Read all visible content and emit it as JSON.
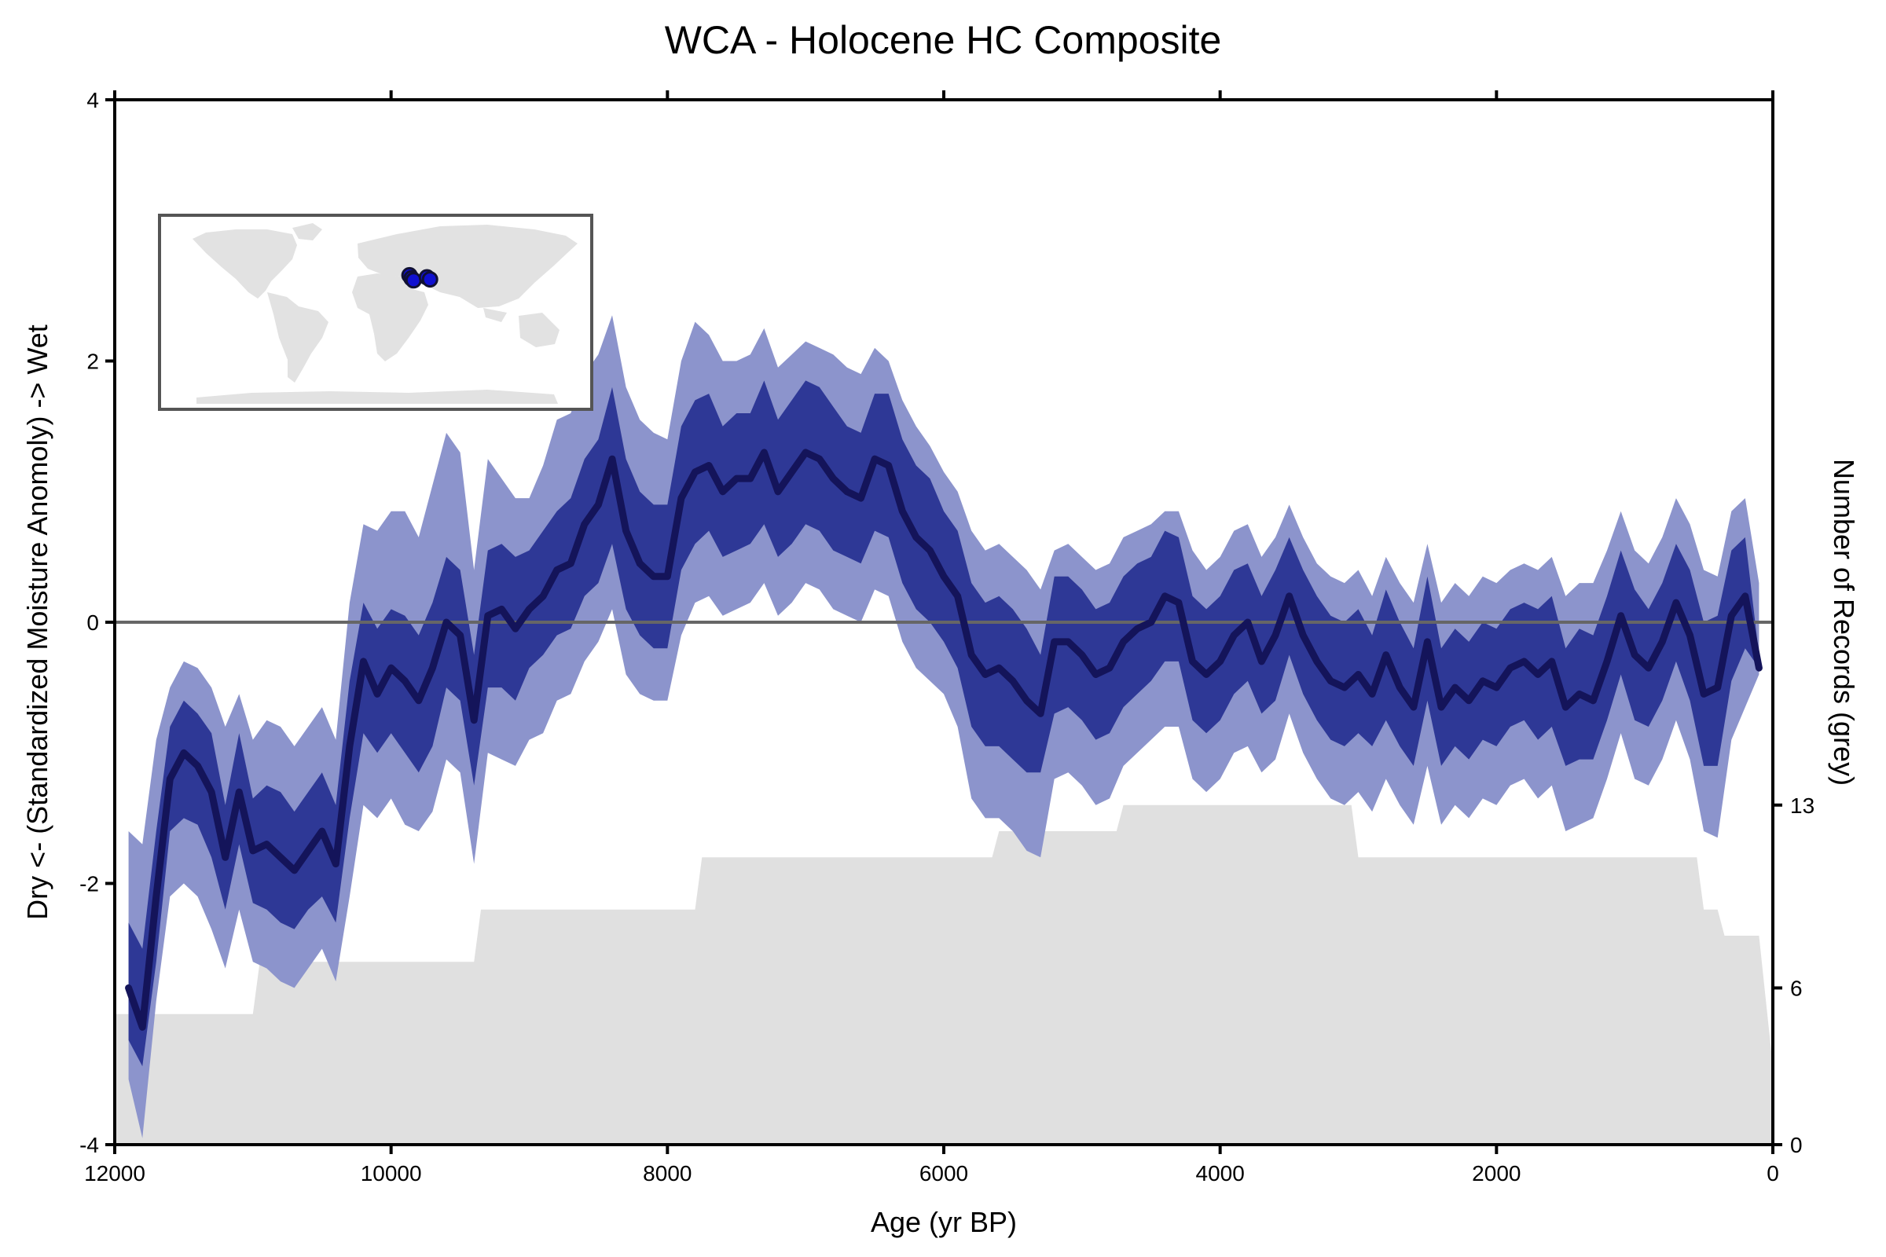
{
  "chart_data": {
    "type": "line",
    "title": "WCA - Holocene HC Composite",
    "xlabel": "Age (yr BP)",
    "ylabel": "Dry <- (Standardized Moisture Anomoly) -> Wet",
    "ylabel_right": "Number of Records (grey)",
    "xlim": [
      12000,
      0
    ],
    "ylim": [
      -4,
      4
    ],
    "y2lim": [
      0,
      40
    ],
    "x_ticks": [
      "12000",
      "10000",
      "8000",
      "6000",
      "4000",
      "2000",
      "0"
    ],
    "y_ticks": [
      "-4",
      "-2",
      "0",
      "2",
      "4"
    ],
    "y2_ticks": [
      "0",
      "6",
      "13"
    ],
    "hline_y": 0,
    "colors": {
      "median": "#14145a",
      "inner_band": "#2e3896",
      "outer_band": "#8c94cc",
      "records": "#e0e0e0",
      "zero_line": "#666666",
      "map_land": "#e2e2e2",
      "map_sites": "#1010d0"
    },
    "series": [
      {
        "name": "Median",
        "x": [
          11900,
          11800,
          11700,
          11600,
          11500,
          11400,
          11300,
          11200,
          11100,
          11000,
          10900,
          10800,
          10700,
          10600,
          10500,
          10400,
          10300,
          10200,
          10100,
          10000,
          9900,
          9800,
          9700,
          9600,
          9500,
          9400,
          9300,
          9200,
          9100,
          9000,
          8900,
          8800,
          8700,
          8600,
          8500,
          8400,
          8300,
          8200,
          8100,
          8000,
          7900,
          7800,
          7700,
          7600,
          7500,
          7400,
          7300,
          7200,
          7100,
          7000,
          6900,
          6800,
          6700,
          6600,
          6500,
          6400,
          6300,
          6200,
          6100,
          6000,
          5900,
          5800,
          5700,
          5600,
          5500,
          5400,
          5300,
          5200,
          5100,
          5000,
          4900,
          4800,
          4700,
          4600,
          4500,
          4400,
          4300,
          4200,
          4100,
          4000,
          3900,
          3800,
          3700,
          3600,
          3500,
          3400,
          3300,
          3200,
          3100,
          3000,
          2900,
          2800,
          2700,
          2600,
          2500,
          2400,
          2300,
          2200,
          2100,
          2000,
          1900,
          1800,
          1700,
          1600,
          1500,
          1400,
          1300,
          1200,
          1100,
          1000,
          900,
          800,
          700,
          600,
          500,
          400,
          300,
          200,
          100
        ],
        "values": [
          -2.8,
          -3.1,
          -2.1,
          -1.2,
          -1.0,
          -1.1,
          -1.3,
          -1.8,
          -1.3,
          -1.75,
          -1.7,
          -1.8,
          -1.9,
          -1.75,
          -1.6,
          -1.85,
          -0.95,
          -0.3,
          -0.55,
          -0.35,
          -0.45,
          -0.6,
          -0.35,
          0.0,
          -0.1,
          -0.75,
          0.05,
          0.1,
          -0.05,
          0.1,
          0.2,
          0.4,
          0.45,
          0.75,
          0.9,
          1.25,
          0.7,
          0.45,
          0.35,
          0.35,
          0.95,
          1.15,
          1.2,
          1.0,
          1.1,
          1.1,
          1.3,
          1.0,
          1.15,
          1.3,
          1.25,
          1.1,
          1.0,
          0.95,
          1.25,
          1.2,
          0.85,
          0.65,
          0.55,
          0.35,
          0.2,
          -0.25,
          -0.4,
          -0.35,
          -0.45,
          -0.6,
          -0.7,
          -0.15,
          -0.15,
          -0.25,
          -0.4,
          -0.35,
          -0.15,
          -0.05,
          0.0,
          0.2,
          0.15,
          -0.3,
          -0.4,
          -0.3,
          -0.1,
          0.0,
          -0.3,
          -0.1,
          0.2,
          -0.1,
          -0.3,
          -0.45,
          -0.5,
          -0.4,
          -0.55,
          -0.25,
          -0.5,
          -0.65,
          -0.15,
          -0.65,
          -0.5,
          -0.6,
          -0.45,
          -0.5,
          -0.35,
          -0.3,
          -0.4,
          -0.3,
          -0.65,
          -0.55,
          -0.6,
          -0.3,
          0.05,
          -0.25,
          -0.35,
          -0.15,
          0.15,
          -0.1,
          -0.55,
          -0.5,
          0.05,
          0.2,
          -0.35
        ]
      },
      {
        "name": "Inner band",
        "x": [
          11900,
          11800,
          11700,
          11600,
          11500,
          11400,
          11300,
          11200,
          11100,
          11000,
          10900,
          10800,
          10700,
          10600,
          10500,
          10400,
          10300,
          10200,
          10100,
          10000,
          9900,
          9800,
          9700,
          9600,
          9500,
          9400,
          9300,
          9200,
          9100,
          9000,
          8900,
          8800,
          8700,
          8600,
          8500,
          8400,
          8300,
          8200,
          8100,
          8000,
          7900,
          7800,
          7700,
          7600,
          7500,
          7400,
          7300,
          7200,
          7100,
          7000,
          6900,
          6800,
          6700,
          6600,
          6500,
          6400,
          6300,
          6200,
          6100,
          6000,
          5900,
          5800,
          5700,
          5600,
          5500,
          5400,
          5300,
          5200,
          5100,
          5000,
          4900,
          4800,
          4700,
          4600,
          4500,
          4400,
          4300,
          4200,
          4100,
          4000,
          3900,
          3800,
          3700,
          3600,
          3500,
          3400,
          3300,
          3200,
          3100,
          3000,
          2900,
          2800,
          2700,
          2600,
          2500,
          2400,
          2300,
          2200,
          2100,
          2000,
          1900,
          1800,
          1700,
          1600,
          1500,
          1400,
          1300,
          1200,
          1100,
          1000,
          900,
          800,
          700,
          600,
          500,
          400,
          300,
          200,
          100
        ],
        "lower": [
          -3.2,
          -3.4,
          -2.6,
          -1.6,
          -1.5,
          -1.55,
          -1.8,
          -2.2,
          -1.7,
          -2.15,
          -2.2,
          -2.3,
          -2.35,
          -2.2,
          -2.1,
          -2.3,
          -1.5,
          -0.85,
          -1.0,
          -0.85,
          -1.0,
          -1.15,
          -0.95,
          -0.5,
          -0.6,
          -1.25,
          -0.5,
          -0.5,
          -0.6,
          -0.35,
          -0.25,
          -0.1,
          -0.05,
          0.2,
          0.3,
          0.6,
          0.1,
          -0.1,
          -0.2,
          -0.2,
          0.4,
          0.6,
          0.7,
          0.5,
          0.55,
          0.6,
          0.75,
          0.5,
          0.6,
          0.75,
          0.7,
          0.55,
          0.5,
          0.45,
          0.7,
          0.65,
          0.3,
          0.1,
          0.0,
          -0.15,
          -0.35,
          -0.8,
          -0.95,
          -0.95,
          -1.05,
          -1.15,
          -1.15,
          -0.7,
          -0.65,
          -0.75,
          -0.9,
          -0.85,
          -0.65,
          -0.55,
          -0.45,
          -0.3,
          -0.3,
          -0.75,
          -0.85,
          -0.75,
          -0.55,
          -0.45,
          -0.7,
          -0.6,
          -0.25,
          -0.55,
          -0.75,
          -0.9,
          -0.95,
          -0.85,
          -0.95,
          -0.75,
          -0.95,
          -1.1,
          -0.6,
          -1.1,
          -0.95,
          -1.05,
          -0.9,
          -0.95,
          -0.8,
          -0.75,
          -0.9,
          -0.8,
          -1.1,
          -1.05,
          -1.05,
          -0.75,
          -0.4,
          -0.75,
          -0.8,
          -0.6,
          -0.3,
          -0.6,
          -1.1,
          -1.1,
          -0.45,
          -0.2,
          -0.35
        ],
        "upper": [
          -2.3,
          -2.5,
          -1.6,
          -0.8,
          -0.6,
          -0.7,
          -0.85,
          -1.4,
          -0.85,
          -1.35,
          -1.25,
          -1.3,
          -1.45,
          -1.3,
          -1.15,
          -1.4,
          -0.45,
          0.15,
          -0.05,
          0.1,
          0.05,
          -0.1,
          0.15,
          0.5,
          0.4,
          -0.25,
          0.55,
          0.6,
          0.5,
          0.55,
          0.7,
          0.85,
          0.95,
          1.25,
          1.4,
          1.8,
          1.25,
          1.0,
          0.9,
          0.9,
          1.5,
          1.7,
          1.75,
          1.5,
          1.6,
          1.6,
          1.85,
          1.55,
          1.7,
          1.85,
          1.8,
          1.65,
          1.5,
          1.45,
          1.75,
          1.75,
          1.4,
          1.2,
          1.1,
          0.85,
          0.7,
          0.3,
          0.15,
          0.2,
          0.1,
          -0.05,
          -0.25,
          0.35,
          0.35,
          0.25,
          0.1,
          0.15,
          0.35,
          0.45,
          0.5,
          0.7,
          0.65,
          0.2,
          0.1,
          0.2,
          0.4,
          0.45,
          0.2,
          0.4,
          0.65,
          0.4,
          0.2,
          0.05,
          0.0,
          0.1,
          -0.1,
          0.25,
          0.0,
          -0.2,
          0.35,
          -0.2,
          -0.05,
          -0.15,
          0.0,
          -0.05,
          0.1,
          0.15,
          0.1,
          0.2,
          -0.2,
          -0.05,
          -0.1,
          0.2,
          0.55,
          0.25,
          0.1,
          0.3,
          0.6,
          0.4,
          0.0,
          0.05,
          0.55,
          0.65,
          -0.25
        ]
      },
      {
        "name": "Outer band",
        "x": [
          11900,
          11800,
          11700,
          11600,
          11500,
          11400,
          11300,
          11200,
          11100,
          11000,
          10900,
          10800,
          10700,
          10600,
          10500,
          10400,
          10300,
          10200,
          10100,
          10000,
          9900,
          9800,
          9700,
          9600,
          9500,
          9400,
          9300,
          9200,
          9100,
          9000,
          8900,
          8800,
          8700,
          8600,
          8500,
          8400,
          8300,
          8200,
          8100,
          8000,
          7900,
          7800,
          7700,
          7600,
          7500,
          7400,
          7300,
          7200,
          7100,
          7000,
          6900,
          6800,
          6700,
          6600,
          6500,
          6400,
          6300,
          6200,
          6100,
          6000,
          5900,
          5800,
          5700,
          5600,
          5500,
          5400,
          5300,
          5200,
          5100,
          5000,
          4900,
          4800,
          4700,
          4600,
          4500,
          4400,
          4300,
          4200,
          4100,
          4000,
          3900,
          3800,
          3700,
          3600,
          3500,
          3400,
          3300,
          3200,
          3100,
          3000,
          2900,
          2800,
          2700,
          2600,
          2500,
          2400,
          2300,
          2200,
          2100,
          2000,
          1900,
          1800,
          1700,
          1600,
          1500,
          1400,
          1300,
          1200,
          1100,
          1000,
          900,
          800,
          700,
          600,
          500,
          400,
          300,
          200,
          100
        ],
        "lower": [
          -3.5,
          -3.95,
          -2.9,
          -2.1,
          -2.0,
          -2.1,
          -2.35,
          -2.65,
          -2.2,
          -2.6,
          -2.65,
          -2.75,
          -2.8,
          -2.65,
          -2.5,
          -2.75,
          -2.1,
          -1.4,
          -1.5,
          -1.35,
          -1.55,
          -1.6,
          -1.45,
          -1.05,
          -1.15,
          -1.85,
          -1.0,
          -1.05,
          -1.1,
          -0.9,
          -0.85,
          -0.6,
          -0.55,
          -0.3,
          -0.15,
          0.1,
          -0.4,
          -0.55,
          -0.6,
          -0.6,
          -0.1,
          0.15,
          0.2,
          0.05,
          0.1,
          0.15,
          0.3,
          0.05,
          0.15,
          0.3,
          0.25,
          0.1,
          0.05,
          0.0,
          0.25,
          0.2,
          -0.15,
          -0.35,
          -0.45,
          -0.55,
          -0.8,
          -1.35,
          -1.5,
          -1.5,
          -1.6,
          -1.75,
          -1.8,
          -1.2,
          -1.15,
          -1.25,
          -1.4,
          -1.35,
          -1.1,
          -1.0,
          -0.9,
          -0.8,
          -0.8,
          -1.2,
          -1.3,
          -1.2,
          -1.0,
          -0.95,
          -1.15,
          -1.05,
          -0.7,
          -1.0,
          -1.2,
          -1.35,
          -1.4,
          -1.3,
          -1.45,
          -1.2,
          -1.4,
          -1.55,
          -1.1,
          -1.55,
          -1.4,
          -1.5,
          -1.35,
          -1.4,
          -1.25,
          -1.2,
          -1.35,
          -1.25,
          -1.6,
          -1.55,
          -1.5,
          -1.2,
          -0.85,
          -1.2,
          -1.25,
          -1.05,
          -0.75,
          -1.05,
          -1.6,
          -1.65,
          -0.9,
          -0.65,
          -0.4
        ],
        "upper": [
          -1.6,
          -1.7,
          -0.9,
          -0.5,
          -0.3,
          -0.35,
          -0.5,
          -0.8,
          -0.55,
          -0.9,
          -0.75,
          -0.8,
          -0.95,
          -0.8,
          -0.65,
          -0.9,
          0.15,
          0.75,
          0.7,
          0.85,
          0.85,
          0.65,
          1.05,
          1.45,
          1.3,
          0.4,
          1.25,
          1.1,
          0.95,
          0.95,
          1.2,
          1.55,
          1.6,
          1.9,
          2.05,
          2.35,
          1.8,
          1.55,
          1.45,
          1.4,
          2.0,
          2.3,
          2.2,
          2.0,
          2.0,
          2.05,
          2.25,
          1.95,
          2.05,
          2.15,
          2.1,
          2.05,
          1.95,
          1.9,
          2.1,
          2.0,
          1.7,
          1.5,
          1.35,
          1.15,
          1.0,
          0.7,
          0.55,
          0.6,
          0.5,
          0.4,
          0.25,
          0.55,
          0.6,
          0.5,
          0.4,
          0.45,
          0.65,
          0.7,
          0.75,
          0.85,
          0.85,
          0.55,
          0.4,
          0.5,
          0.7,
          0.75,
          0.5,
          0.65,
          0.9,
          0.65,
          0.45,
          0.35,
          0.3,
          0.4,
          0.2,
          0.5,
          0.3,
          0.15,
          0.6,
          0.15,
          0.3,
          0.2,
          0.35,
          0.3,
          0.4,
          0.45,
          0.4,
          0.5,
          0.2,
          0.3,
          0.3,
          0.55,
          0.85,
          0.55,
          0.45,
          0.65,
          0.95,
          0.75,
          0.4,
          0.35,
          0.85,
          0.95,
          0.3
        ]
      },
      {
        "name": "Number of Records",
        "axis": "right",
        "x": [
          12000,
          11000,
          10950,
          9400,
          9350,
          7800,
          7750,
          5650,
          5600,
          4750,
          4700,
          3050,
          3000,
          550,
          500,
          400,
          350,
          200,
          100,
          0
        ],
        "values": [
          5,
          5,
          7,
          7,
          9,
          9,
          11,
          11,
          12,
          12,
          13,
          13,
          11,
          11,
          9,
          9,
          8,
          8,
          8,
          3
        ]
      }
    ],
    "inset_map": {
      "sites": [
        {
          "lon": 33,
          "lat": 38
        },
        {
          "lon": 35,
          "lat": 35
        },
        {
          "lon": 37,
          "lat": 33
        },
        {
          "lon": 50,
          "lat": 36
        },
        {
          "lon": 53,
          "lat": 34
        }
      ]
    }
  }
}
